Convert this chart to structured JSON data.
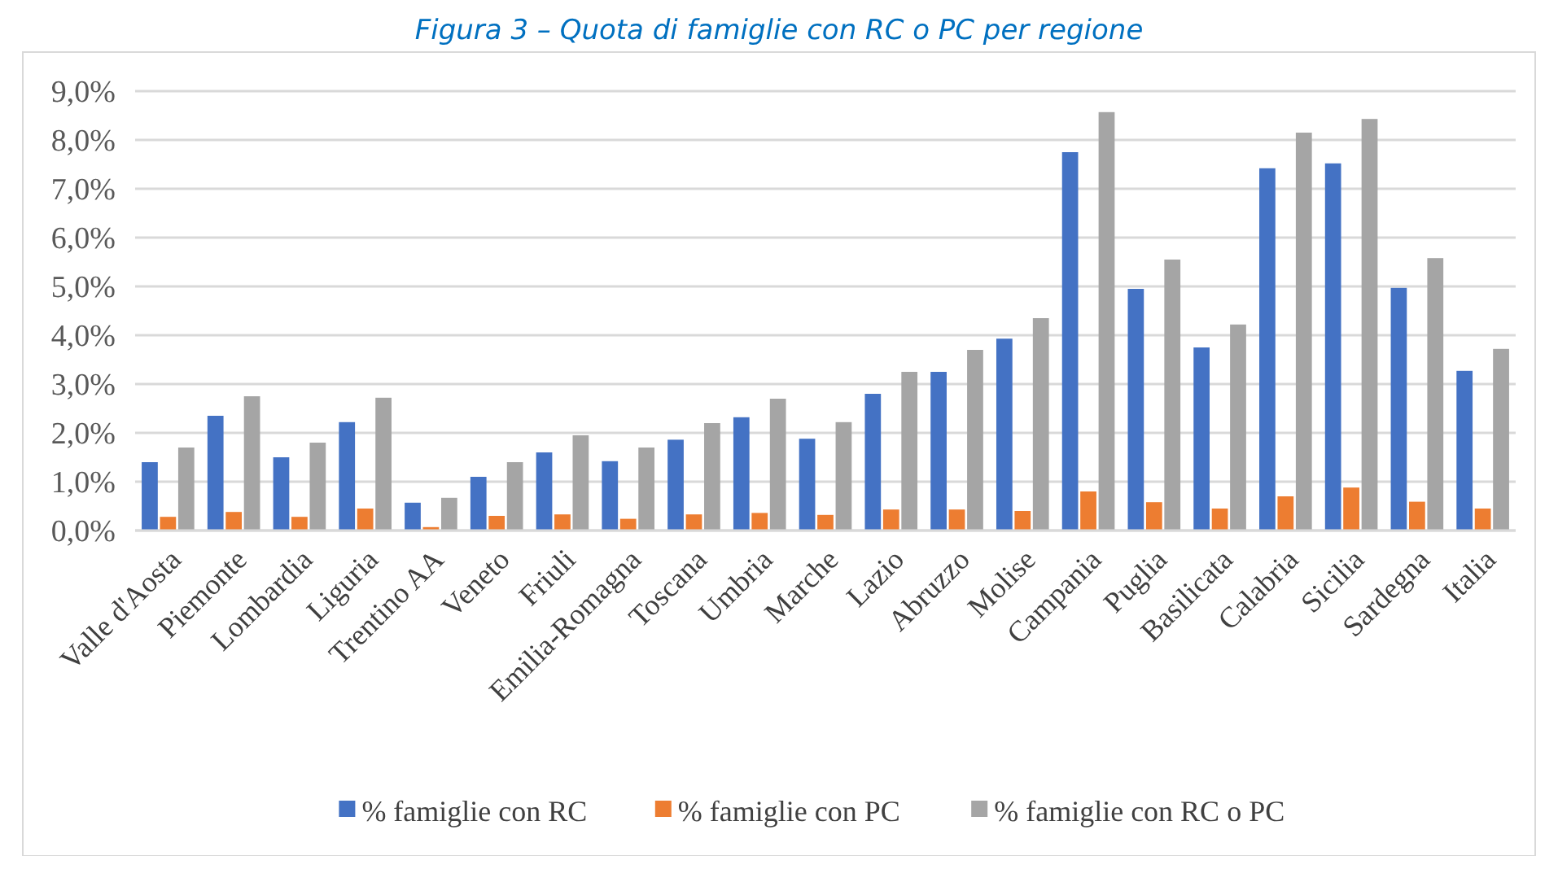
{
  "chart_data": {
    "type": "bar",
    "title": "Figura 3 – Quota di famiglie con RC o PC per regione",
    "categories": [
      "Valle d'Aosta",
      "Piemonte",
      "Lombardia",
      "Liguria",
      "Trentino AA",
      "Veneto",
      "Friuli",
      "Emilia-Romagna",
      "Toscana",
      "Umbria",
      "Marche",
      "Lazio",
      "Abruzzo",
      "Molise",
      "Campania",
      "Puglia",
      "Basilicata",
      "Calabria",
      "Sicilia",
      "Sardegna",
      "Italia"
    ],
    "series": [
      {
        "name": "% famiglie con RC",
        "color": "#4472c4",
        "values": [
          1.4,
          2.35,
          1.5,
          2.22,
          0.57,
          1.1,
          1.6,
          1.42,
          1.86,
          2.32,
          1.88,
          2.8,
          3.25,
          3.93,
          7.75,
          4.95,
          3.75,
          7.42,
          7.52,
          4.97,
          3.27
        ]
      },
      {
        "name": "% famiglie con PC",
        "color": "#ed7d31",
        "values": [
          0.28,
          0.38,
          0.28,
          0.45,
          0.07,
          0.3,
          0.33,
          0.24,
          0.33,
          0.36,
          0.32,
          0.43,
          0.43,
          0.4,
          0.8,
          0.58,
          0.45,
          0.7,
          0.88,
          0.59,
          0.45
        ]
      },
      {
        "name": "% famiglie con RC o PC",
        "color": "#a5a5a5",
        "values": [
          1.7,
          2.75,
          1.8,
          2.72,
          0.67,
          1.4,
          1.95,
          1.7,
          2.2,
          2.7,
          2.22,
          3.25,
          3.7,
          4.35,
          8.57,
          5.55,
          4.22,
          8.15,
          8.43,
          5.58,
          3.72
        ]
      }
    ],
    "ylim": [
      0,
      9
    ],
    "yticks": [
      {
        "value": 0,
        "label": "0,0%"
      },
      {
        "value": 1,
        "label": "1,0%"
      },
      {
        "value": 2,
        "label": "2,0%"
      },
      {
        "value": 3,
        "label": "3,0%"
      },
      {
        "value": 4,
        "label": "4,0%"
      },
      {
        "value": 5,
        "label": "5,0%"
      },
      {
        "value": 6,
        "label": "6,0%"
      },
      {
        "value": 7,
        "label": "7,0%"
      },
      {
        "value": 8,
        "label": "8,0%"
      },
      {
        "value": 9,
        "label": "9,0%"
      }
    ],
    "grid": "y",
    "legend": "bottom"
  }
}
